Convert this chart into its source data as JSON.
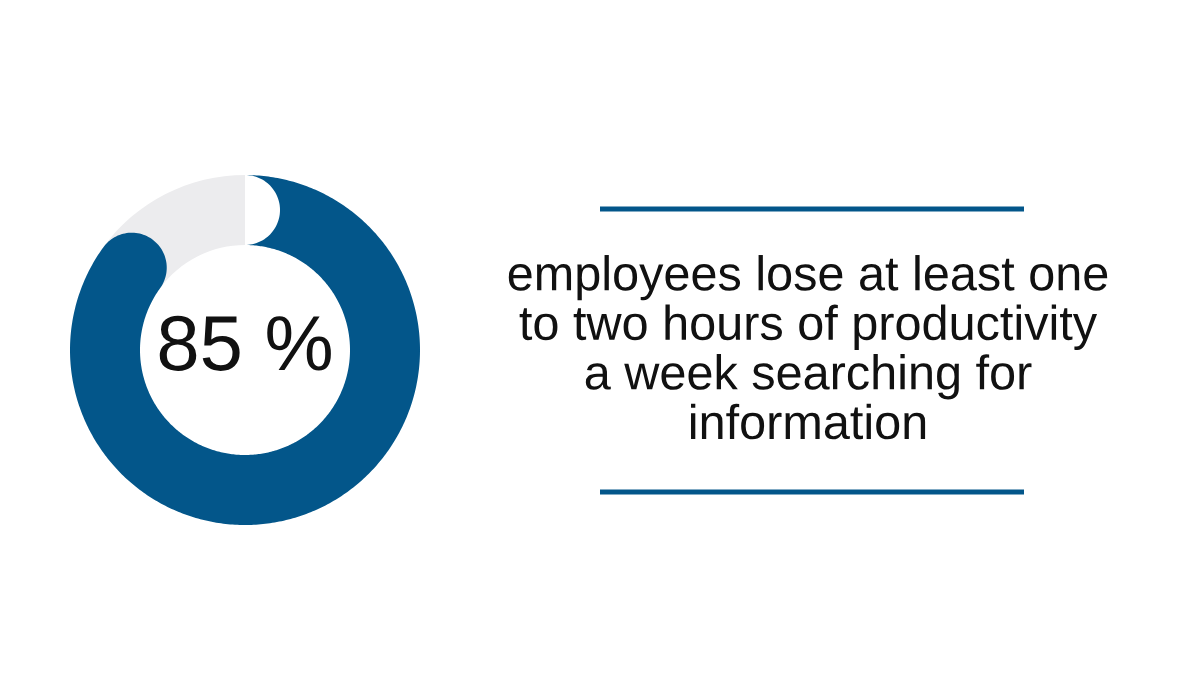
{
  "chart_data": {
    "type": "donut",
    "categories": [
      null,
      null
    ],
    "values": [
      85,
      15
    ],
    "colors": [
      "#03568a",
      "#ececee"
    ],
    "value_labels": [
      "85 %",
      null
    ],
    "annotations": [
      "employees lose at least one\nto two hours of productivity\na week searching for\ninformation"
    ]
  }
}
